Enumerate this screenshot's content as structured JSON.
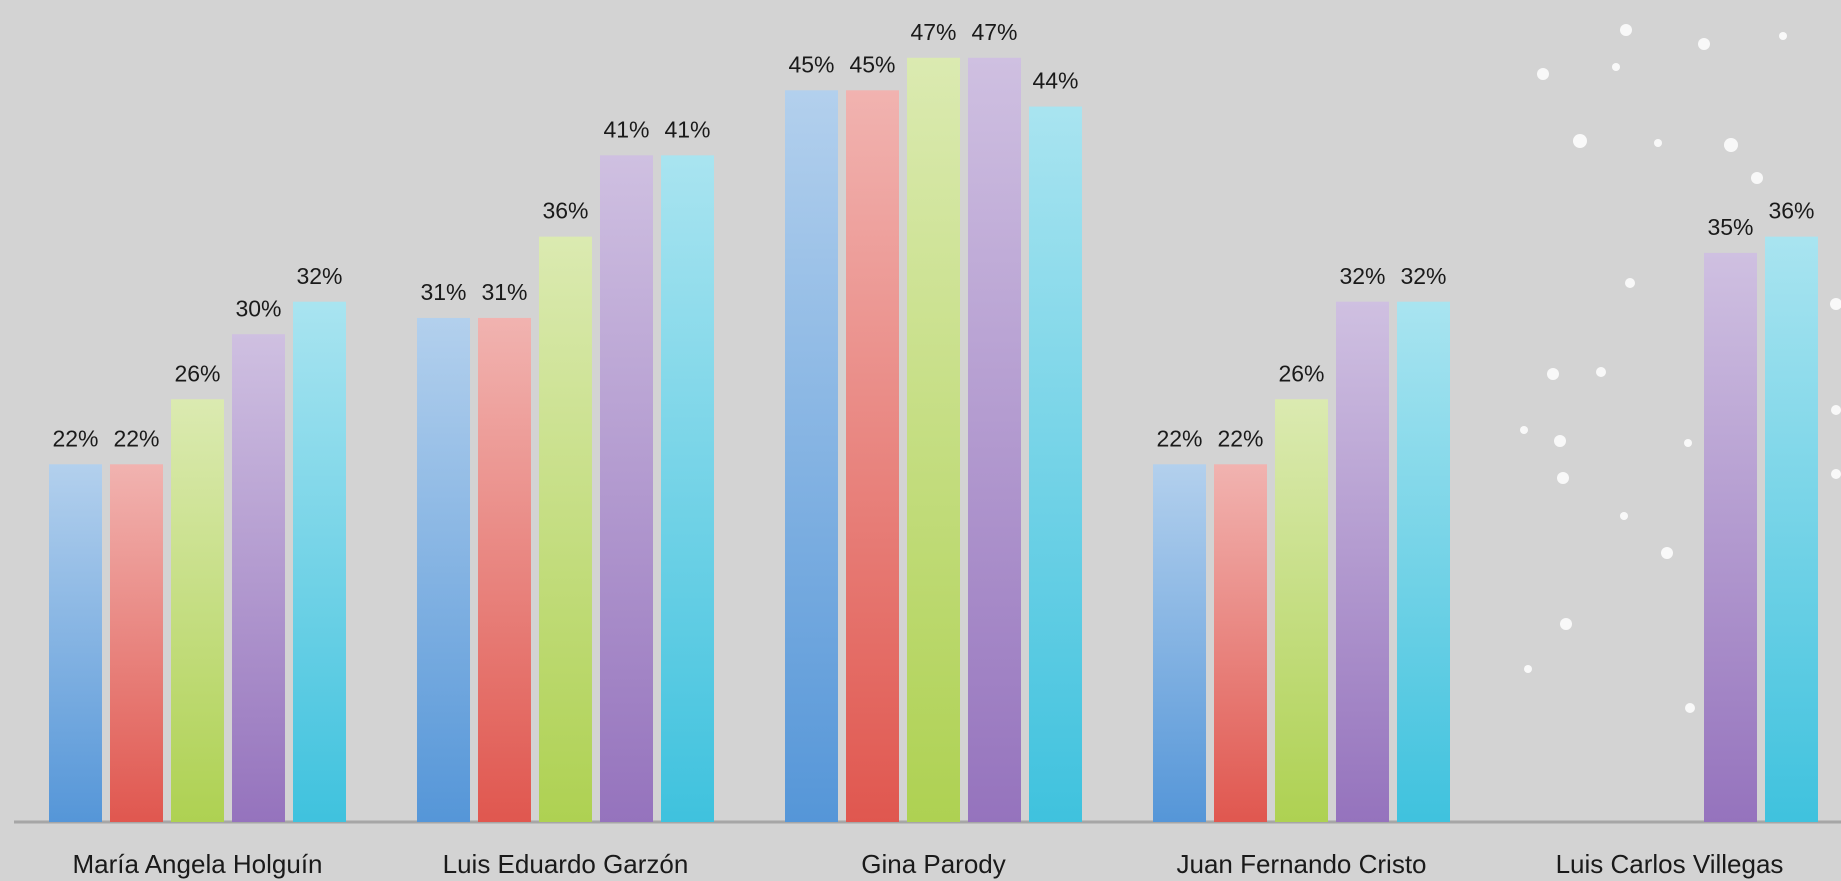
{
  "chart_data": {
    "type": "bar",
    "categories": [
      "María Angela Holguín",
      "Luis Eduardo Garzón",
      "Gina Parody",
      "Juan Fernando Cristo",
      "Luis Carlos Villegas"
    ],
    "series": [
      {
        "color": "#5596d8",
        "values": [
          22,
          31,
          45,
          22,
          null
        ],
        "value_labels": [
          "22%",
          "31%",
          "45%",
          "22%",
          null
        ]
      },
      {
        "color": "#e0574f",
        "values": [
          22,
          31,
          45,
          22,
          null
        ],
        "value_labels": [
          "22%",
          "31%",
          "45%",
          "22%",
          null
        ]
      },
      {
        "color": "#aed152",
        "values": [
          26,
          36,
          47,
          26,
          null
        ],
        "value_labels": [
          "26%",
          "36%",
          "47%",
          "26%",
          null
        ]
      },
      {
        "color": "#9573bd",
        "values": [
          30,
          41,
          47,
          32,
          35
        ],
        "value_labels": [
          "30%",
          "41%",
          "47%",
          "32%",
          "35%"
        ]
      },
      {
        "color": "#3fc2de",
        "values": [
          32,
          41,
          44,
          32,
          36
        ],
        "value_labels": [
          "32%",
          "41%",
          "44%",
          "32%",
          "36%"
        ]
      }
    ],
    "ylim": [
      0,
      50
    ]
  }
}
